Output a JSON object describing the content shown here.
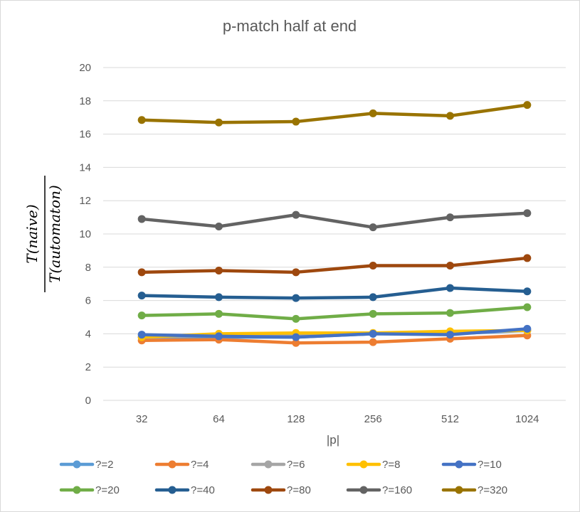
{
  "chart_data": {
    "type": "line",
    "title": "p-match half at end",
    "xlabel": "|p|",
    "ylabel_numerator": "T(naive)",
    "ylabel_denominator": "T(automaton)",
    "categories": [
      "32",
      "64",
      "128",
      "256",
      "512",
      "1024"
    ],
    "ylim": [
      0,
      20
    ],
    "yticks": [
      0,
      2,
      4,
      6,
      8,
      10,
      12,
      14,
      16,
      18,
      20
    ],
    "grid": true,
    "legend_position": "bottom",
    "series": [
      {
        "name": "?=2",
        "color": "#5b9bd5",
        "values": [
          3.8,
          3.8,
          3.8,
          4.0,
          4.0,
          4.2
        ]
      },
      {
        "name": "?=4",
        "color": "#ed7d31",
        "values": [
          3.6,
          3.65,
          3.45,
          3.5,
          3.7,
          3.9
        ]
      },
      {
        "name": "?=6",
        "color": "#a5a5a5",
        "values": [
          3.8,
          3.9,
          3.85,
          4.0,
          4.1,
          4.2
        ]
      },
      {
        "name": "?=8",
        "color": "#ffc000",
        "values": [
          3.8,
          4.0,
          4.05,
          4.05,
          4.15,
          4.2
        ]
      },
      {
        "name": "?=10",
        "color": "#4472c4",
        "values": [
          3.95,
          3.85,
          3.8,
          4.0,
          3.95,
          4.3
        ]
      },
      {
        "name": "?=20",
        "color": "#70ad47",
        "values": [
          5.1,
          5.2,
          4.9,
          5.2,
          5.25,
          5.6
        ]
      },
      {
        "name": "?=40",
        "color": "#255e91",
        "values": [
          6.3,
          6.2,
          6.15,
          6.2,
          6.75,
          6.55
        ]
      },
      {
        "name": "?=80",
        "color": "#9e480e",
        "values": [
          7.7,
          7.8,
          7.7,
          8.1,
          8.1,
          8.55
        ]
      },
      {
        "name": "?=160",
        "color": "#636363",
        "values": [
          10.9,
          10.45,
          11.15,
          10.4,
          11.0,
          11.25
        ]
      },
      {
        "name": "?=320",
        "color": "#997300",
        "values": [
          16.85,
          16.7,
          16.75,
          17.25,
          17.1,
          17.75
        ]
      }
    ]
  }
}
